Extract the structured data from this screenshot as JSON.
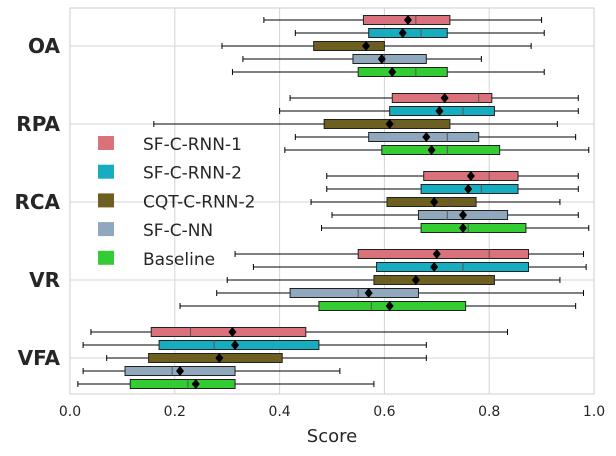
{
  "chart_data": {
    "type": "boxplot",
    "orientation": "horizontal",
    "xlabel": "Score",
    "xlim": [
      0.0,
      1.0
    ],
    "xticks": [
      "0.0",
      "0.2",
      "0.4",
      "0.6",
      "0.8",
      "1.0"
    ],
    "grid": true,
    "legend_position": "left",
    "series": [
      {
        "name": "SF-C-RNN-1",
        "color": "#d9727a"
      },
      {
        "name": "SF-C-RNN-2",
        "color": "#16adc1"
      },
      {
        "name": "CQT-C-RNN-2",
        "color": "#6d5f1f"
      },
      {
        "name": "SF-C-NN",
        "color": "#8fa8be"
      },
      {
        "name": "Baseline",
        "color": "#33cc33"
      }
    ],
    "groups": [
      {
        "label": "OA",
        "stats": [
          {
            "min": 0.37,
            "q1": 0.56,
            "median": 0.66,
            "q3": 0.725,
            "max": 0.9,
            "mean": 0.645
          },
          {
            "min": 0.43,
            "q1": 0.57,
            "median": 0.67,
            "q3": 0.72,
            "max": 0.905,
            "mean": 0.635
          },
          {
            "min": 0.29,
            "q1": 0.465,
            "median": 0.58,
            "q3": 0.6,
            "max": 0.88,
            "mean": 0.565
          },
          {
            "min": 0.33,
            "q1": 0.54,
            "median": 0.6,
            "q3": 0.68,
            "max": 0.785,
            "mean": 0.595
          },
          {
            "min": 0.31,
            "q1": 0.55,
            "median": 0.66,
            "q3": 0.72,
            "max": 0.905,
            "mean": 0.615
          }
        ]
      },
      {
        "label": "RPA",
        "stats": [
          {
            "min": 0.42,
            "q1": 0.615,
            "median": 0.78,
            "q3": 0.805,
            "max": 0.97,
            "mean": 0.715
          },
          {
            "min": 0.4,
            "q1": 0.61,
            "median": 0.75,
            "q3": 0.81,
            "max": 0.97,
            "mean": 0.705
          },
          {
            "min": 0.16,
            "q1": 0.485,
            "median": 0.62,
            "q3": 0.725,
            "max": 0.93,
            "mean": 0.61
          },
          {
            "min": 0.43,
            "q1": 0.57,
            "median": 0.72,
            "q3": 0.78,
            "max": 0.965,
            "mean": 0.68
          },
          {
            "min": 0.41,
            "q1": 0.595,
            "median": 0.72,
            "q3": 0.82,
            "max": 0.99,
            "mean": 0.69
          }
        ]
      },
      {
        "label": "RCA",
        "stats": [
          {
            "min": 0.49,
            "q1": 0.675,
            "median": 0.8,
            "q3": 0.855,
            "max": 0.97,
            "mean": 0.765
          },
          {
            "min": 0.49,
            "q1": 0.67,
            "median": 0.785,
            "q3": 0.855,
            "max": 0.97,
            "mean": 0.76
          },
          {
            "min": 0.46,
            "q1": 0.605,
            "median": 0.725,
            "q3": 0.775,
            "max": 0.935,
            "mean": 0.695
          },
          {
            "min": 0.5,
            "q1": 0.665,
            "median": 0.72,
            "q3": 0.835,
            "max": 0.97,
            "mean": 0.75
          },
          {
            "min": 0.48,
            "q1": 0.67,
            "median": 0.76,
            "q3": 0.87,
            "max": 0.99,
            "mean": 0.75
          }
        ]
      },
      {
        "label": "VR",
        "stats": [
          {
            "min": 0.315,
            "q1": 0.55,
            "median": 0.8,
            "q3": 0.875,
            "max": 0.98,
            "mean": 0.7
          },
          {
            "min": 0.35,
            "q1": 0.585,
            "median": 0.75,
            "q3": 0.875,
            "max": 0.985,
            "mean": 0.695
          },
          {
            "min": 0.3,
            "q1": 0.58,
            "median": 0.665,
            "q3": 0.81,
            "max": 0.935,
            "mean": 0.66
          },
          {
            "min": 0.28,
            "q1": 0.42,
            "median": 0.55,
            "q3": 0.665,
            "max": 0.98,
            "mean": 0.57
          },
          {
            "min": 0.21,
            "q1": 0.475,
            "median": 0.575,
            "q3": 0.755,
            "max": 0.965,
            "mean": 0.61
          }
        ]
      },
      {
        "label": "VFA",
        "stats": [
          {
            "min": 0.04,
            "q1": 0.155,
            "median": 0.23,
            "q3": 0.45,
            "max": 0.835,
            "mean": 0.31
          },
          {
            "min": 0.025,
            "q1": 0.17,
            "median": 0.275,
            "q3": 0.475,
            "max": 0.68,
            "mean": 0.315
          },
          {
            "min": 0.07,
            "q1": 0.15,
            "median": 0.285,
            "q3": 0.405,
            "max": 0.68,
            "mean": 0.285
          },
          {
            "min": 0.025,
            "q1": 0.105,
            "median": 0.195,
            "q3": 0.315,
            "max": 0.515,
            "mean": 0.21
          },
          {
            "min": 0.015,
            "q1": 0.115,
            "median": 0.225,
            "q3": 0.315,
            "max": 0.58,
            "mean": 0.24
          }
        ]
      }
    ]
  }
}
